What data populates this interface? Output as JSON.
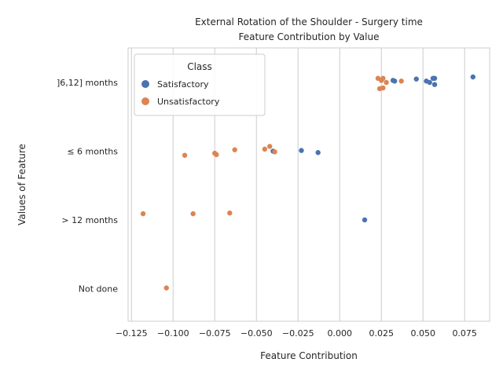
{
  "chart_data": {
    "type": "scatter",
    "title_line1": "External Rotation of the Shoulder - Surgery time",
    "title_line2": "Feature Contribution by Value",
    "xlabel": "Feature Contribution",
    "ylabel": "Values of Feature",
    "xlim": [
      -0.127,
      0.09
    ],
    "x_ticks": [
      -0.125,
      -0.1,
      -0.075,
      -0.05,
      -0.025,
      0.0,
      0.025,
      0.05,
      0.075
    ],
    "x_tick_labels": [
      "−0.125",
      "−0.100",
      "−0.075",
      "−0.050",
      "−0.025",
      "0.000",
      "0.025",
      "0.050",
      "0.075"
    ],
    "categories": [
      "]6,12] months",
      "≤ 6 months",
      "> 12 months",
      "Not done"
    ],
    "grid": "vertical",
    "legend": {
      "title": "Class",
      "placement": "top-left",
      "entries": [
        {
          "label": "Satisfactory",
          "color": "#4c72b0"
        },
        {
          "label": "Unsatisfactory",
          "color": "#dd8452"
        }
      ]
    },
    "series": [
      {
        "name": "Satisfactory",
        "color": "#4c72b0",
        "points": [
          {
            "x": 0.08,
            "y": "]6,12] months",
            "jitter": -0.08
          },
          {
            "x": 0.057,
            "y": "]6,12] months",
            "jitter": -0.06
          },
          {
            "x": 0.056,
            "y": "]6,12] months",
            "jitter": -0.06
          },
          {
            "x": 0.057,
            "y": "]6,12] months",
            "jitter": 0.03
          },
          {
            "x": 0.054,
            "y": "]6,12] months",
            "jitter": 0.0
          },
          {
            "x": 0.052,
            "y": "]6,12] months",
            "jitter": -0.02
          },
          {
            "x": 0.046,
            "y": "]6,12] months",
            "jitter": -0.05
          },
          {
            "x": 0.033,
            "y": "]6,12] months",
            "jitter": -0.02
          },
          {
            "x": 0.032,
            "y": "]6,12] months",
            "jitter": -0.03
          },
          {
            "x": -0.04,
            "y": "≤ 6 months",
            "jitter": 0.0
          },
          {
            "x": -0.023,
            "y": "≤ 6 months",
            "jitter": -0.01
          },
          {
            "x": -0.013,
            "y": "≤ 6 months",
            "jitter": 0.02
          },
          {
            "x": 0.015,
            "y": "> 12 months",
            "jitter": 0.0
          }
        ]
      },
      {
        "name": "Unsatisfactory",
        "color": "#dd8452",
        "points": [
          {
            "x": 0.026,
            "y": "]6,12] months",
            "jitter": -0.06
          },
          {
            "x": 0.023,
            "y": "]6,12] months",
            "jitter": -0.06
          },
          {
            "x": 0.025,
            "y": "]6,12] months",
            "jitter": -0.03
          },
          {
            "x": 0.037,
            "y": "]6,12] months",
            "jitter": -0.02
          },
          {
            "x": 0.028,
            "y": "]6,12] months",
            "jitter": 0.0
          },
          {
            "x": 0.026,
            "y": "]6,12] months",
            "jitter": 0.08
          },
          {
            "x": 0.024,
            "y": "]6,12] months",
            "jitter": 0.09
          },
          {
            "x": -0.042,
            "y": "≤ 6 months",
            "jitter": -0.07
          },
          {
            "x": -0.045,
            "y": "≤ 6 months",
            "jitter": -0.03
          },
          {
            "x": -0.063,
            "y": "≤ 6 months",
            "jitter": -0.02
          },
          {
            "x": -0.039,
            "y": "≤ 6 months",
            "jitter": 0.01
          },
          {
            "x": -0.075,
            "y": "≤ 6 months",
            "jitter": 0.03
          },
          {
            "x": -0.074,
            "y": "≤ 6 months",
            "jitter": 0.05
          },
          {
            "x": -0.093,
            "y": "≤ 6 months",
            "jitter": 0.06
          },
          {
            "x": -0.118,
            "y": "> 12 months",
            "jitter": -0.09
          },
          {
            "x": -0.088,
            "y": "> 12 months",
            "jitter": -0.09
          },
          {
            "x": -0.066,
            "y": "> 12 months",
            "jitter": -0.1
          },
          {
            "x": -0.104,
            "y": "Not done",
            "jitter": -0.01
          }
        ]
      }
    ]
  }
}
